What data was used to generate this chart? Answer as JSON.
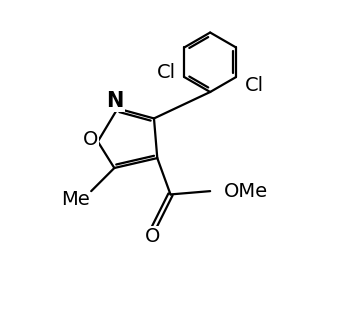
{
  "background_color": "#ffffff",
  "line_color": "#000000",
  "line_width": 1.6,
  "font_size": 14,
  "figsize": [
    3.41,
    3.36
  ],
  "dpi": 100,
  "xlim": [
    0,
    10
  ],
  "ylim": [
    0,
    10
  ]
}
